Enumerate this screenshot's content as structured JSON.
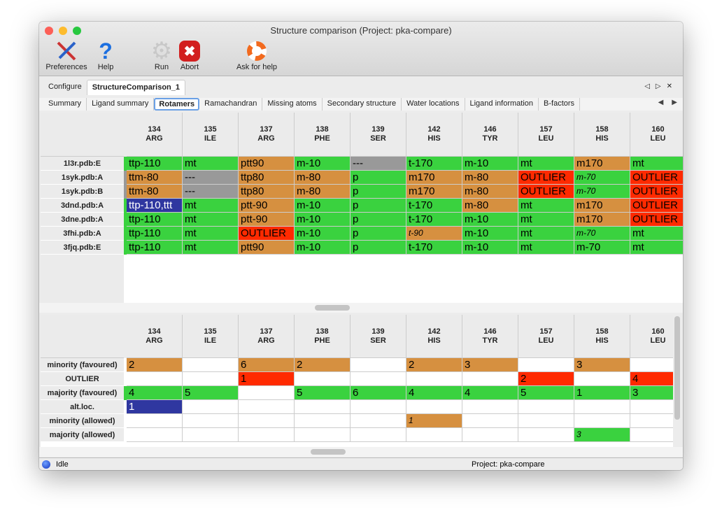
{
  "window": {
    "title": "Structure comparison (Project: pka-compare)"
  },
  "toolbar": [
    {
      "label": "Preferences",
      "icon": "tools-icon"
    },
    {
      "label": "Help",
      "icon": "help-icon"
    },
    {
      "label": "Run",
      "icon": "gear-icon"
    },
    {
      "label": "Abort",
      "icon": "abort-icon"
    },
    {
      "label": "Ask for help",
      "icon": "lifebuoy-icon"
    }
  ],
  "tabs": [
    {
      "label": "Configure"
    },
    {
      "label": "StructureComparison_1",
      "active": true
    }
  ],
  "subtabs": [
    {
      "label": "Summary"
    },
    {
      "label": "Ligand summary"
    },
    {
      "label": "Rotamers",
      "active": true
    },
    {
      "label": "Ramachandran"
    },
    {
      "label": "Missing atoms"
    },
    {
      "label": "Secondary structure"
    },
    {
      "label": "Water locations"
    },
    {
      "label": "Ligand information"
    },
    {
      "label": "B-factors"
    }
  ],
  "colors": {
    "g": "#3ad23f",
    "o": "#d69040",
    "r": "#ff2a00",
    "x": "#999999",
    "b": "#2f37a0",
    "w": "#ffffff"
  },
  "columns": [
    [
      "134",
      "ARG"
    ],
    [
      "135",
      "ILE"
    ],
    [
      "137",
      "ARG"
    ],
    [
      "138",
      "PHE"
    ],
    [
      "139",
      "SER"
    ],
    [
      "142",
      "HIS"
    ],
    [
      "146",
      "TYR"
    ],
    [
      "157",
      "LEU"
    ],
    [
      "158",
      "HIS"
    ],
    [
      "160",
      "LEU"
    ]
  ],
  "top_table": {
    "rows": [
      {
        "label": "1l3r.pdb:E",
        "stripe": "g",
        "cells": [
          [
            "ttp-110",
            "g"
          ],
          [
            "mt",
            "g"
          ],
          [
            "ptt90",
            "o"
          ],
          [
            "m-10",
            "g"
          ],
          [
            "---",
            "x"
          ],
          [
            "t-170",
            "g"
          ],
          [
            "m-10",
            "g"
          ],
          [
            "mt",
            "g"
          ],
          [
            "m170",
            "o"
          ],
          [
            "mt",
            "g"
          ]
        ]
      },
      {
        "label": "1syk.pdb:A",
        "stripe": "x",
        "cells": [
          [
            "ttm-80",
            "o"
          ],
          [
            "---",
            "x"
          ],
          [
            "ttp80",
            "o"
          ],
          [
            "m-80",
            "o"
          ],
          [
            "p",
            "g"
          ],
          [
            "m170",
            "o"
          ],
          [
            "m-80",
            "o"
          ],
          [
            "OUTLIER",
            "r"
          ],
          [
            "m-70",
            "g",
            "i"
          ],
          [
            "OUTLIER",
            "r"
          ]
        ]
      },
      {
        "label": "1syk.pdb:B",
        "stripe": "x",
        "cells": [
          [
            "ttm-80",
            "o"
          ],
          [
            "---",
            "x"
          ],
          [
            "ttp80",
            "o"
          ],
          [
            "m-80",
            "o"
          ],
          [
            "p",
            "g"
          ],
          [
            "m170",
            "o"
          ],
          [
            "m-80",
            "o"
          ],
          [
            "OUTLIER",
            "r"
          ],
          [
            "m-70",
            "g",
            "i"
          ],
          [
            "OUTLIER",
            "r"
          ]
        ]
      },
      {
        "label": "3dnd.pdb:A",
        "stripe": "g",
        "cells": [
          [
            "ttp-110,ttt",
            "b"
          ],
          [
            "mt",
            "g"
          ],
          [
            "ptt-90",
            "o"
          ],
          [
            "m-10",
            "g"
          ],
          [
            "p",
            "g"
          ],
          [
            "t-170",
            "g"
          ],
          [
            "m-80",
            "o"
          ],
          [
            "mt",
            "g"
          ],
          [
            "m170",
            "o"
          ],
          [
            "OUTLIER",
            "r"
          ]
        ]
      },
      {
        "label": "3dne.pdb:A",
        "stripe": "g",
        "cells": [
          [
            "ttp-110",
            "g"
          ],
          [
            "mt",
            "g"
          ],
          [
            "ptt-90",
            "o"
          ],
          [
            "m-10",
            "g"
          ],
          [
            "p",
            "g"
          ],
          [
            "t-170",
            "g"
          ],
          [
            "m-10",
            "g"
          ],
          [
            "mt",
            "g"
          ],
          [
            "m170",
            "o"
          ],
          [
            "OUTLIER",
            "r"
          ]
        ]
      },
      {
        "label": "3fhi.pdb:A",
        "stripe": "g",
        "cells": [
          [
            "ttp-110",
            "g"
          ],
          [
            "mt",
            "g"
          ],
          [
            "OUTLIER",
            "r"
          ],
          [
            "m-10",
            "g"
          ],
          [
            "p",
            "g"
          ],
          [
            "t-90",
            "o",
            "i"
          ],
          [
            "m-10",
            "g"
          ],
          [
            "mt",
            "g"
          ],
          [
            "m-70",
            "g",
            "i"
          ],
          [
            "mt",
            "g"
          ]
        ]
      },
      {
        "label": "3fjq.pdb:E",
        "stripe": "g",
        "cells": [
          [
            "ttp-110",
            "g"
          ],
          [
            "mt",
            "g"
          ],
          [
            "ptt90",
            "o"
          ],
          [
            "m-10",
            "g"
          ],
          [
            "p",
            "g"
          ],
          [
            "t-170",
            "g"
          ],
          [
            "m-10",
            "g"
          ],
          [
            "mt",
            "g"
          ],
          [
            "m-70",
            "g"
          ],
          [
            "mt",
            "g"
          ]
        ]
      }
    ]
  },
  "bottom_table": {
    "rows": [
      {
        "label": "minority (favoured)",
        "stripe": "w",
        "cells": [
          [
            "2",
            "o"
          ],
          [
            "",
            "w"
          ],
          [
            "6",
            "o"
          ],
          [
            "2",
            "o"
          ],
          [
            "",
            "w"
          ],
          [
            "2",
            "o"
          ],
          [
            "3",
            "o"
          ],
          [
            "",
            "w"
          ],
          [
            "3",
            "o"
          ],
          [
            "",
            "w"
          ]
        ]
      },
      {
        "label": "OUTLIER",
        "stripe": "w",
        "cells": [
          [
            "",
            "w"
          ],
          [
            "",
            "w"
          ],
          [
            "1",
            "r"
          ],
          [
            "",
            "w"
          ],
          [
            "",
            "w"
          ],
          [
            "",
            "w"
          ],
          [
            "",
            "w"
          ],
          [
            "2",
            "r"
          ],
          [
            "",
            "w"
          ],
          [
            "4",
            "r"
          ]
        ]
      },
      {
        "label": "majority (favoured)",
        "stripe": "g",
        "cells": [
          [
            "4",
            "g"
          ],
          [
            "5",
            "g"
          ],
          [
            "",
            "w"
          ],
          [
            "5",
            "g"
          ],
          [
            "6",
            "g"
          ],
          [
            "4",
            "g"
          ],
          [
            "4",
            "g"
          ],
          [
            "5",
            "g"
          ],
          [
            "1",
            "g"
          ],
          [
            "3",
            "g"
          ]
        ]
      },
      {
        "label": "alt.loc.",
        "stripe": "w",
        "cells": [
          [
            "1",
            "b"
          ],
          [
            "",
            "w"
          ],
          [
            "",
            "w"
          ],
          [
            "",
            "w"
          ],
          [
            "",
            "w"
          ],
          [
            "",
            "w"
          ],
          [
            "",
            "w"
          ],
          [
            "",
            "w"
          ],
          [
            "",
            "w"
          ],
          [
            "",
            "w"
          ]
        ]
      },
      {
        "label": "minority (allowed)",
        "stripe": "w",
        "cells": [
          [
            "",
            "w"
          ],
          [
            "",
            "w"
          ],
          [
            "",
            "w"
          ],
          [
            "",
            "w"
          ],
          [
            "",
            "w"
          ],
          [
            "1",
            "o",
            "i"
          ],
          [
            "",
            "w"
          ],
          [
            "",
            "w"
          ],
          [
            "",
            "w"
          ],
          [
            "",
            "w"
          ]
        ]
      },
      {
        "label": "majority (allowed)",
        "stripe": "w",
        "cells": [
          [
            "",
            "w"
          ],
          [
            "",
            "w"
          ],
          [
            "",
            "w"
          ],
          [
            "",
            "w"
          ],
          [
            "",
            "w"
          ],
          [
            "",
            "w"
          ],
          [
            "",
            "w"
          ],
          [
            "",
            "w"
          ],
          [
            "3",
            "g",
            "i"
          ],
          [
            "",
            "w"
          ]
        ]
      }
    ]
  },
  "status": {
    "state": "Idle",
    "project": "Project: pka-compare"
  }
}
